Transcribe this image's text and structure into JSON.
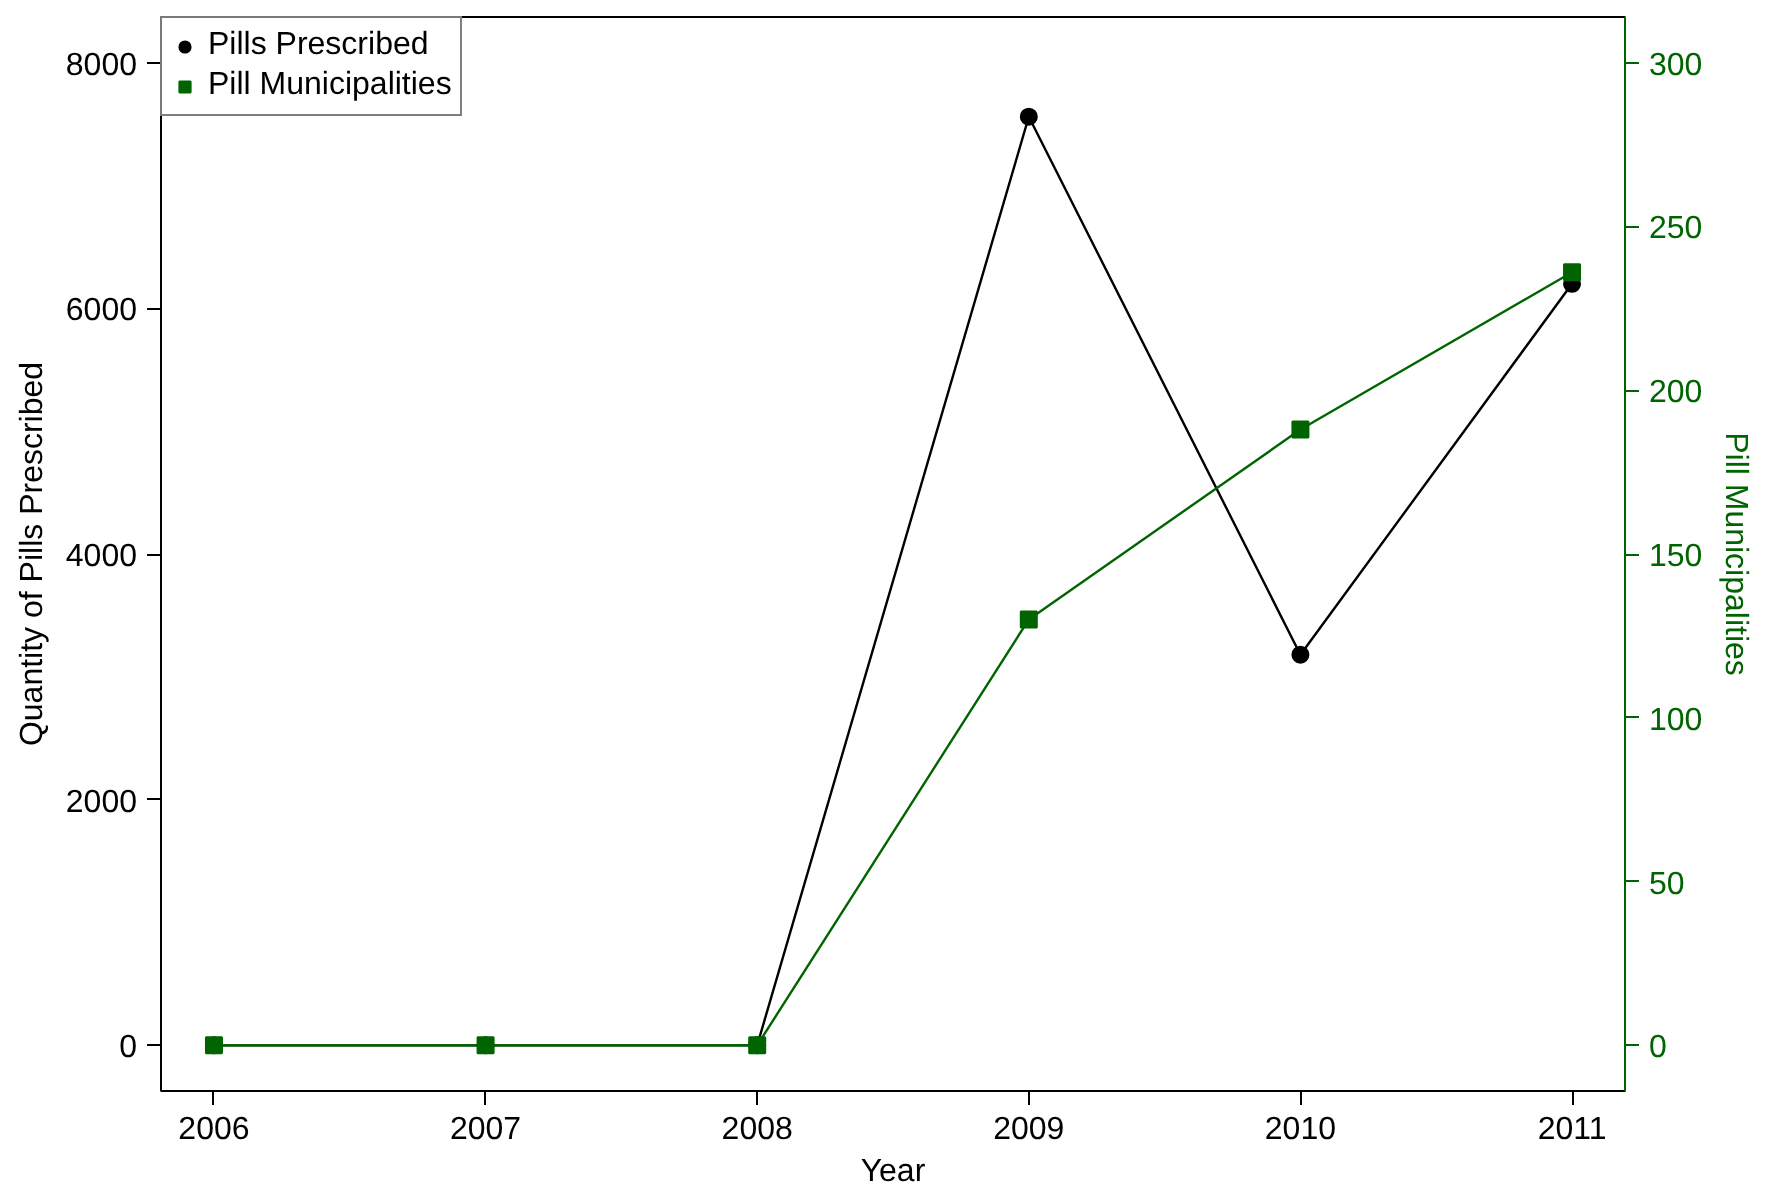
{
  "chart_data": {
    "type": "line",
    "xlabel": "Year",
    "ylabel": "Quantity of Pills Prescribed",
    "y2label": "Pill Municipalities",
    "x": [
      2006,
      2007,
      2008,
      2009,
      2010,
      2011
    ],
    "series": [
      {
        "name": "Pills Prescribed",
        "color": "#000000",
        "marker": "circle",
        "values": [
          0,
          0,
          0,
          7560,
          3180,
          6200
        ]
      },
      {
        "name": "Pill Municipalities",
        "color": "#006400",
        "marker": "square",
        "axis": "y2",
        "values": [
          0,
          0,
          0,
          130,
          188,
          236
        ]
      }
    ],
    "xlim": [
      2005.805,
      2011.195
    ],
    "xticks": [
      2006,
      2007,
      2008,
      2009,
      2010,
      2011
    ],
    "ylim": [
      -372,
      8372
    ],
    "yticks": [
      0,
      2000,
      4000,
      6000,
      8000
    ],
    "y2lim": [
      -13.95,
      313.95
    ],
    "y2ticks": [
      0,
      50,
      100,
      150,
      200,
      250,
      300
    ],
    "grid": false,
    "legend": "top left"
  }
}
